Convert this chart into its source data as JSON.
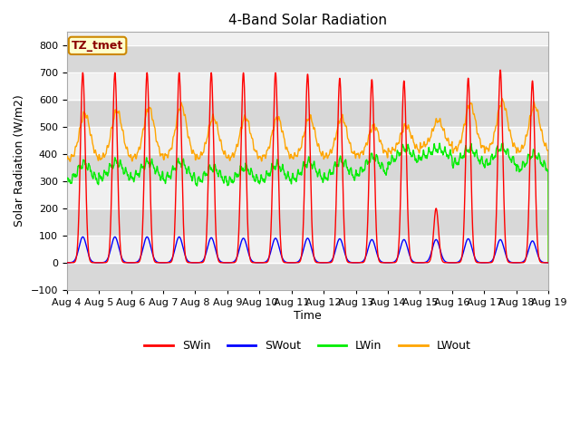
{
  "title": "4-Band Solar Radiation",
  "xlabel": "Time",
  "ylabel": "Solar Radiation (W/m2)",
  "ylim": [
    -100,
    850
  ],
  "yticks": [
    -100,
    0,
    100,
    200,
    300,
    400,
    500,
    600,
    700,
    800
  ],
  "num_days": 15,
  "xtick_labels": [
    "Aug 4",
    "Aug 5",
    "Aug 6",
    "Aug 7",
    "Aug 8",
    "Aug 9",
    "Aug 10",
    "Aug 11",
    "Aug 12",
    "Aug 13",
    "Aug 14",
    "Aug 15",
    "Aug 16",
    "Aug 17",
    "Aug 18",
    "Aug 19"
  ],
  "colors": {
    "SWin": "#ff0000",
    "SWout": "#0000ff",
    "LWin": "#00ee00",
    "LWout": "#ffa500"
  },
  "legend_label_box": "TZ_tmet",
  "legend_box_facecolor": "#ffffcc",
  "legend_box_edgecolor": "#cc8800",
  "plot_bg_color": "#f0f0f0",
  "band_color_light": "#e8e8e8",
  "band_color_dark": "#d8d8d8",
  "title_fontsize": 11,
  "axis_label_fontsize": 9,
  "tick_fontsize": 8
}
